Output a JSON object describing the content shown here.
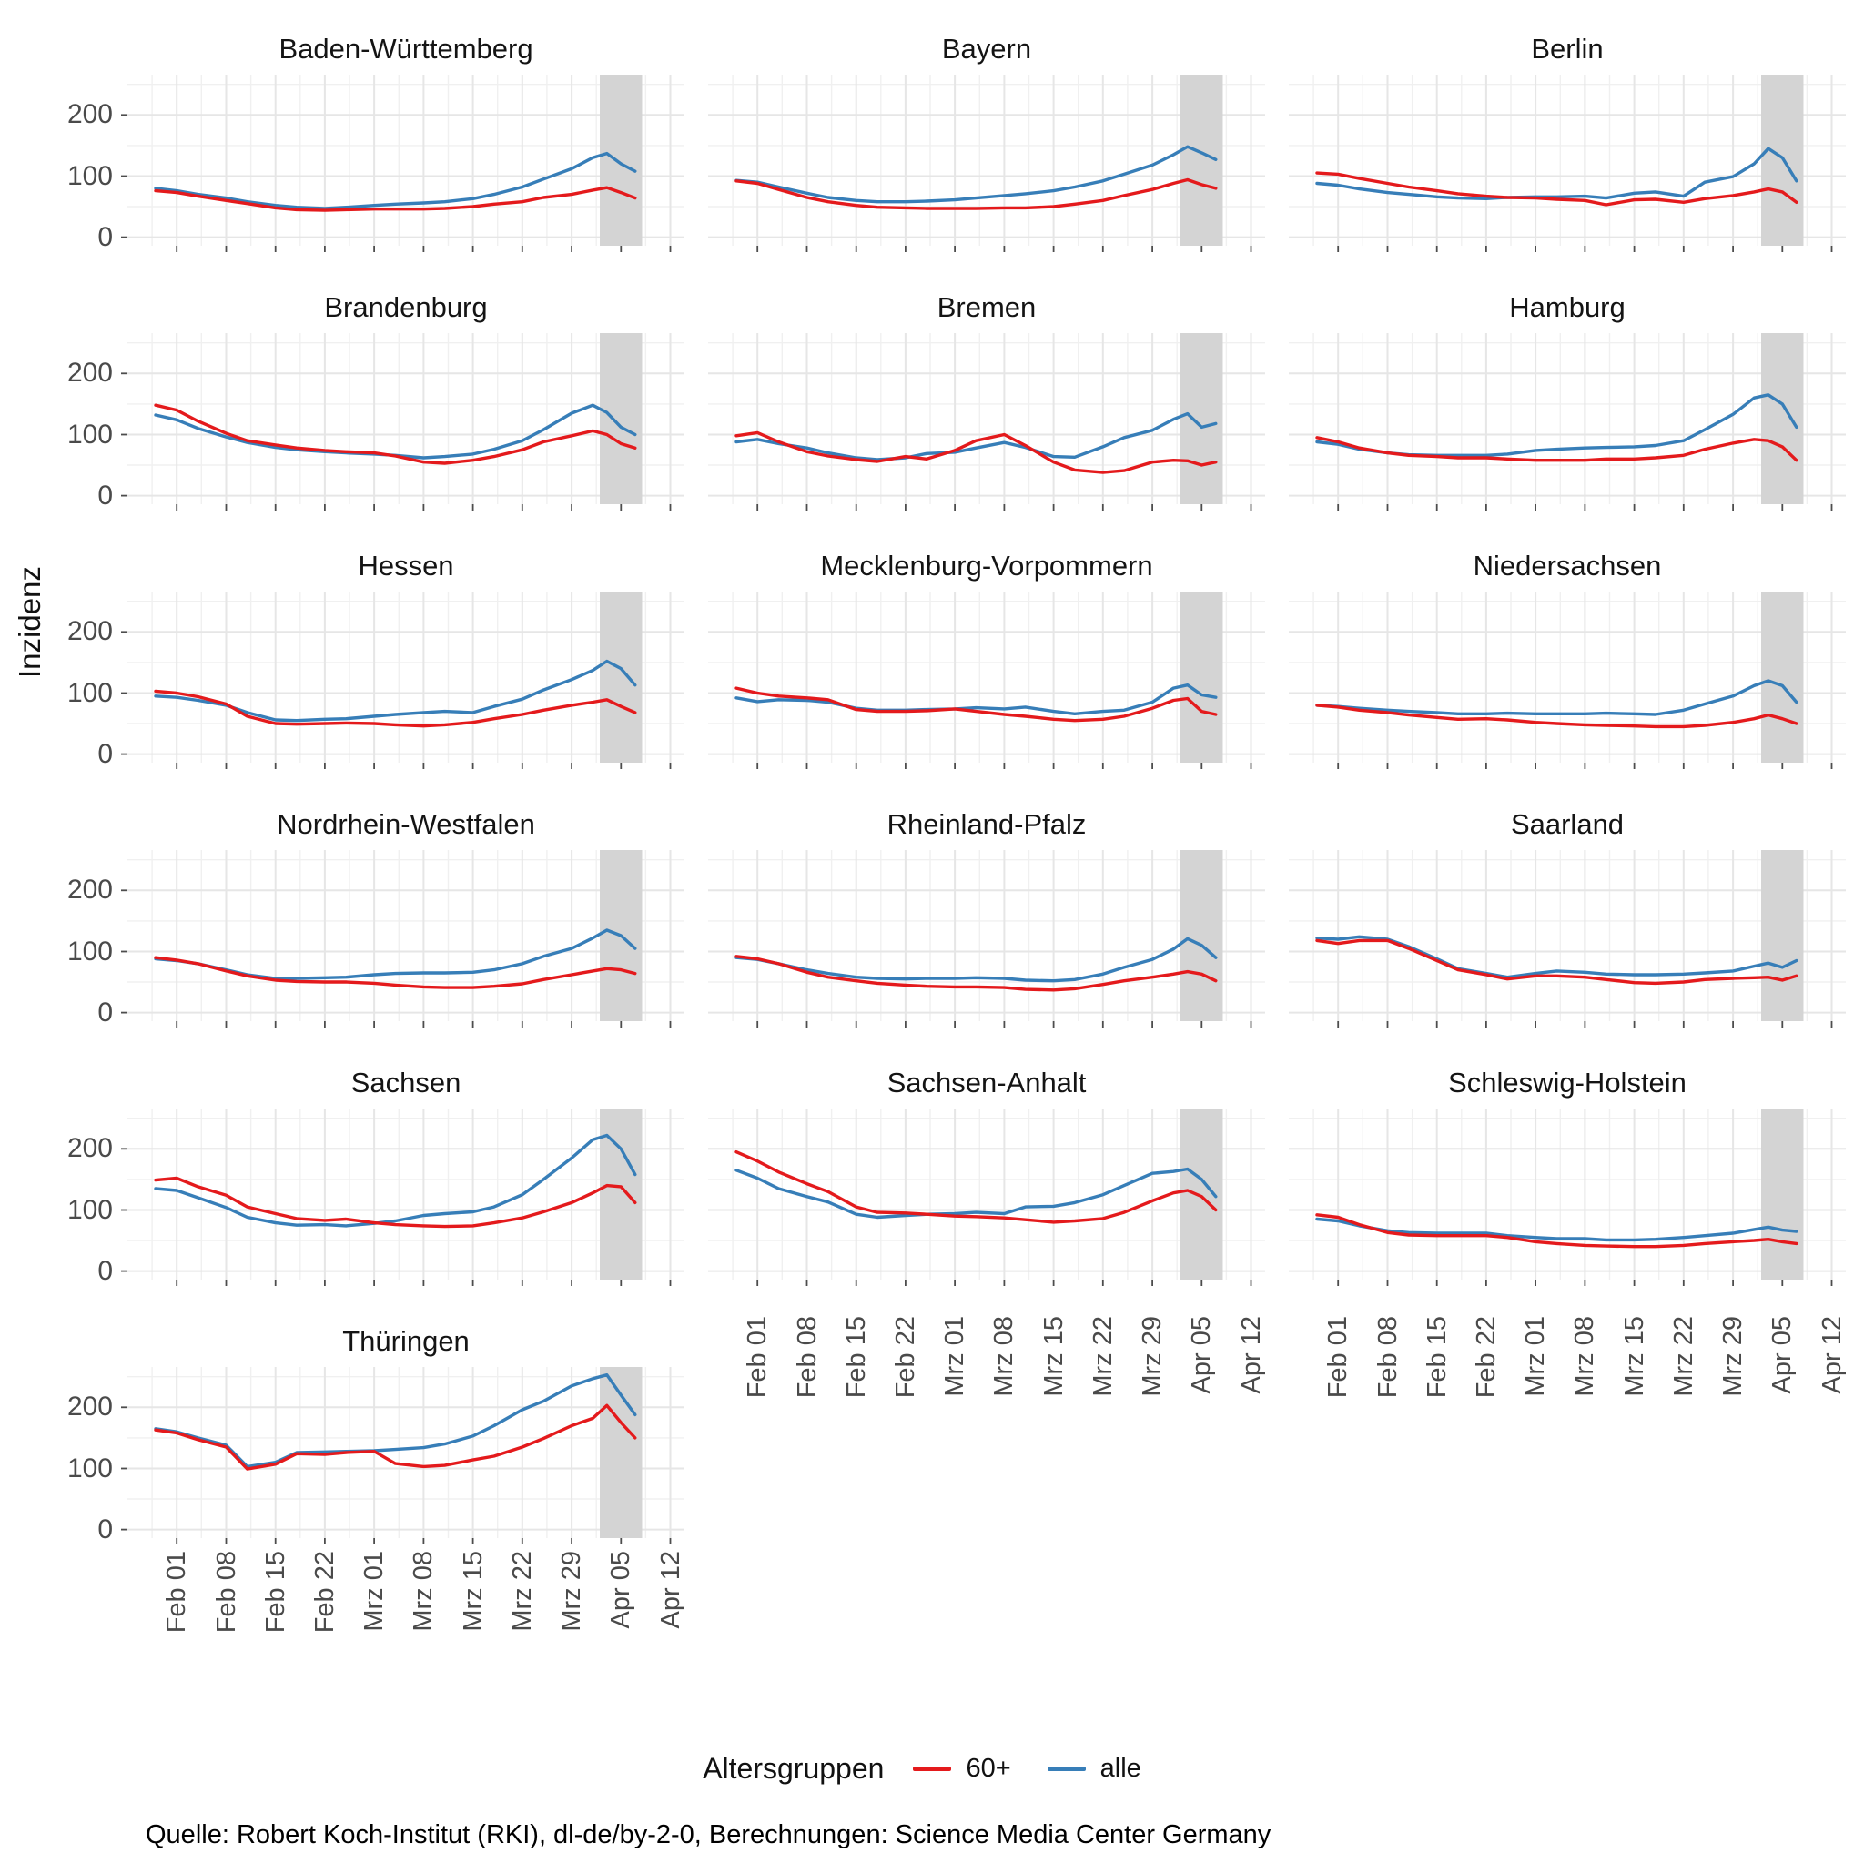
{
  "ylabel": "Inzidenz",
  "source": "Quelle: Robert Koch-Institut (RKI), dl-de/by-2-0, Berechnungen: Science Media Center Germany",
  "legend": {
    "title": "Altersgruppen",
    "items": [
      {
        "label": "60+",
        "series_key": "s60plus",
        "color": "#e41a1c"
      },
      {
        "label": "alle",
        "series_key": "alle",
        "color": "#377eb8"
      }
    ]
  },
  "chart_data": {
    "type": "line",
    "title": "",
    "xlabel": "",
    "ylabel": "Inzidenz",
    "y_ticks": [
      0,
      100,
      200
    ],
    "y_minor": [
      50,
      150,
      250
    ],
    "ylim_display": [
      -14,
      266
    ],
    "x_tick_labels": [
      "Feb 01",
      "Feb 08",
      "Feb 15",
      "Feb 22",
      "Mrz 01",
      "Mrz 08",
      "Mrz 15",
      "Mrz 22",
      "Mrz 29",
      "Apr 05",
      "Apr 12"
    ],
    "x_tick_days": [
      4,
      11,
      18,
      25,
      32,
      39,
      46,
      53,
      60,
      67,
      74
    ],
    "x_minor_days": [
      0.5,
      7.5,
      14.5,
      21.5,
      28.5,
      35.5,
      42.5,
      49.5,
      56.5,
      63.5,
      70.5
    ],
    "x_domain_days": [
      -3,
      76
    ],
    "x_sample_dates": [
      "Jan 29",
      "Feb 01",
      "Feb 04",
      "Feb 08",
      "Feb 11",
      "Feb 15",
      "Feb 18",
      "Feb 22",
      "Feb 25",
      "Mrz 01",
      "Mrz 04",
      "Mrz 08",
      "Mrz 11",
      "Mrz 15",
      "Mrz 18",
      "Mrz 22",
      "Mrz 25",
      "Mrz 29",
      "Apr 01",
      "Apr 03",
      "Apr 05",
      "Apr 07"
    ],
    "x_sample_days": [
      1,
      4,
      7,
      11,
      14,
      18,
      21,
      25,
      28,
      32,
      35,
      39,
      42,
      46,
      49,
      53,
      56,
      60,
      63,
      65,
      67,
      69
    ],
    "series_colors": {
      "s60plus": "#e41a1c",
      "alle": "#377eb8"
    },
    "uncertain_band_days": [
      64,
      70
    ],
    "band_color": "#d4d4d4",
    "grid_major_color": "#e6e6e6",
    "grid_minor_color": "#f0f0f0",
    "tick_color": "#4d4d4d",
    "facets": [
      {
        "name": "Baden-Württemberg",
        "alle": [
          80,
          76,
          70,
          64,
          58,
          52,
          49,
          47,
          49,
          52,
          54,
          56,
          58,
          63,
          70,
          82,
          95,
          112,
          130,
          137,
          120,
          108
        ],
        "s60plus": [
          76,
          73,
          67,
          60,
          55,
          48,
          45,
          44,
          45,
          46,
          46,
          46,
          47,
          50,
          54,
          58,
          65,
          70,
          77,
          81,
          73,
          64
        ]
      },
      {
        "name": "Bayern",
        "alle": [
          93,
          90,
          82,
          72,
          65,
          60,
          58,
          58,
          59,
          61,
          64,
          68,
          71,
          76,
          82,
          92,
          103,
          118,
          135,
          148,
          138,
          127
        ],
        "s60plus": [
          92,
          88,
          78,
          65,
          58,
          52,
          49,
          48,
          47,
          47,
          47,
          48,
          48,
          50,
          54,
          60,
          68,
          78,
          88,
          94,
          86,
          80
        ]
      },
      {
        "name": "Berlin",
        "alle": [
          88,
          85,
          79,
          73,
          70,
          66,
          64,
          63,
          65,
          66,
          66,
          67,
          64,
          72,
          74,
          67,
          90,
          99,
          120,
          145,
          130,
          92
        ],
        "s60plus": [
          105,
          103,
          96,
          88,
          82,
          76,
          71,
          67,
          65,
          64,
          62,
          60,
          53,
          61,
          62,
          57,
          63,
          68,
          74,
          79,
          74,
          57
        ]
      },
      {
        "name": "Brandenburg",
        "alle": [
          132,
          124,
          110,
          96,
          87,
          79,
          75,
          72,
          70,
          68,
          66,
          62,
          64,
          68,
          76,
          90,
          108,
          135,
          148,
          136,
          112,
          100
        ],
        "s60plus": [
          148,
          140,
          122,
          102,
          90,
          83,
          78,
          74,
          72,
          70,
          65,
          55,
          53,
          58,
          64,
          75,
          88,
          98,
          106,
          100,
          85,
          78
        ]
      },
      {
        "name": "Bremen",
        "alle": [
          88,
          92,
          85,
          78,
          70,
          62,
          59,
          62,
          69,
          71,
          78,
          87,
          79,
          64,
          63,
          80,
          95,
          107,
          125,
          134,
          112,
          118
        ],
        "s60plus": [
          98,
          103,
          88,
          72,
          65,
          59,
          56,
          64,
          60,
          74,
          90,
          100,
          82,
          55,
          42,
          38,
          41,
          55,
          58,
          57,
          50,
          55
        ]
      },
      {
        "name": "Hamburg",
        "alle": [
          88,
          84,
          76,
          70,
          67,
          66,
          66,
          66,
          68,
          74,
          76,
          78,
          79,
          80,
          82,
          90,
          108,
          133,
          160,
          165,
          150,
          112
        ],
        "s60plus": [
          95,
          88,
          78,
          70,
          66,
          64,
          62,
          62,
          60,
          58,
          58,
          58,
          60,
          60,
          62,
          66,
          76,
          86,
          92,
          90,
          80,
          58
        ]
      },
      {
        "name": "Hessen",
        "alle": [
          95,
          93,
          88,
          80,
          68,
          56,
          55,
          57,
          58,
          62,
          65,
          68,
          70,
          68,
          78,
          90,
          105,
          122,
          137,
          152,
          140,
          113
        ],
        "s60plus": [
          103,
          100,
          94,
          82,
          62,
          50,
          49,
          50,
          51,
          50,
          48,
          46,
          48,
          52,
          58,
          65,
          72,
          80,
          85,
          89,
          78,
          68
        ]
      },
      {
        "name": "Mecklenburg-Vorpommern",
        "alle": [
          92,
          86,
          89,
          88,
          85,
          75,
          72,
          72,
          73,
          74,
          76,
          74,
          77,
          70,
          66,
          70,
          72,
          85,
          108,
          113,
          97,
          93
        ],
        "s60plus": [
          108,
          100,
          95,
          92,
          89,
          73,
          70,
          70,
          71,
          74,
          70,
          65,
          62,
          57,
          55,
          57,
          62,
          75,
          88,
          91,
          70,
          65
        ]
      },
      {
        "name": "Niedersachsen",
        "alle": [
          80,
          78,
          75,
          72,
          70,
          68,
          66,
          66,
          67,
          66,
          66,
          66,
          67,
          66,
          65,
          72,
          82,
          95,
          112,
          120,
          112,
          85
        ],
        "s60plus": [
          80,
          77,
          72,
          68,
          64,
          60,
          57,
          58,
          56,
          52,
          50,
          48,
          47,
          46,
          45,
          45,
          47,
          52,
          58,
          64,
          58,
          50
        ]
      },
      {
        "name": "Nordrhein-Westfalen",
        "alle": [
          88,
          85,
          80,
          70,
          62,
          56,
          56,
          57,
          58,
          62,
          64,
          65,
          65,
          66,
          70,
          80,
          92,
          105,
          122,
          135,
          126,
          105
        ],
        "s60plus": [
          90,
          86,
          80,
          68,
          60,
          53,
          51,
          50,
          50,
          48,
          45,
          42,
          41,
          41,
          43,
          47,
          54,
          62,
          68,
          72,
          70,
          64
        ]
      },
      {
        "name": "Rheinland-Pfalz",
        "alle": [
          90,
          87,
          80,
          70,
          64,
          58,
          56,
          55,
          56,
          56,
          57,
          56,
          53,
          52,
          54,
          63,
          74,
          87,
          104,
          121,
          110,
          90
        ],
        "s60plus": [
          92,
          88,
          80,
          66,
          58,
          52,
          48,
          45,
          43,
          42,
          42,
          41,
          38,
          37,
          39,
          46,
          52,
          58,
          63,
          67,
          63,
          52
        ]
      },
      {
        "name": "Saarland",
        "alle": [
          122,
          120,
          124,
          120,
          108,
          88,
          72,
          64,
          58,
          64,
          68,
          66,
          63,
          62,
          62,
          63,
          65,
          68,
          76,
          81,
          74,
          85
        ],
        "s60plus": [
          118,
          113,
          118,
          118,
          105,
          85,
          70,
          62,
          55,
          60,
          60,
          58,
          54,
          49,
          48,
          50,
          54,
          56,
          57,
          58,
          53,
          60
        ]
      },
      {
        "name": "Sachsen",
        "alle": [
          135,
          132,
          120,
          104,
          88,
          79,
          75,
          76,
          74,
          78,
          82,
          91,
          94,
          97,
          105,
          125,
          150,
          185,
          215,
          222,
          200,
          158
        ],
        "s60plus": [
          149,
          152,
          138,
          124,
          105,
          94,
          86,
          83,
          85,
          79,
          76,
          74,
          73,
          74,
          79,
          87,
          97,
          112,
          128,
          140,
          138,
          112
        ]
      },
      {
        "name": "Sachsen-Anhalt",
        "alle": [
          165,
          152,
          135,
          122,
          113,
          93,
          88,
          91,
          93,
          94,
          96,
          94,
          105,
          106,
          112,
          125,
          140,
          160,
          163,
          167,
          150,
          122
        ],
        "s60plus": [
          195,
          180,
          162,
          143,
          130,
          105,
          96,
          95,
          93,
          90,
          89,
          87,
          84,
          80,
          82,
          86,
          96,
          115,
          128,
          132,
          122,
          100
        ]
      },
      {
        "name": "Schleswig-Holstein",
        "alle": [
          85,
          82,
          74,
          66,
          63,
          62,
          62,
          62,
          58,
          55,
          53,
          53,
          51,
          51,
          52,
          55,
          58,
          62,
          68,
          72,
          67,
          65
        ],
        "s60plus": [
          92,
          88,
          76,
          63,
          59,
          58,
          58,
          58,
          55,
          48,
          45,
          42,
          41,
          40,
          40,
          42,
          45,
          48,
          50,
          52,
          48,
          45
        ]
      },
      {
        "name": "Thüringen",
        "alle": [
          165,
          160,
          150,
          138,
          103,
          110,
          126,
          127,
          128,
          129,
          131,
          134,
          140,
          153,
          170,
          196,
          210,
          235,
          247,
          253,
          220,
          188
        ],
        "s60plus": [
          163,
          158,
          147,
          135,
          99,
          107,
          124,
          123,
          126,
          128,
          108,
          103,
          105,
          114,
          120,
          135,
          149,
          170,
          182,
          203,
          175,
          150
        ]
      }
    ]
  }
}
